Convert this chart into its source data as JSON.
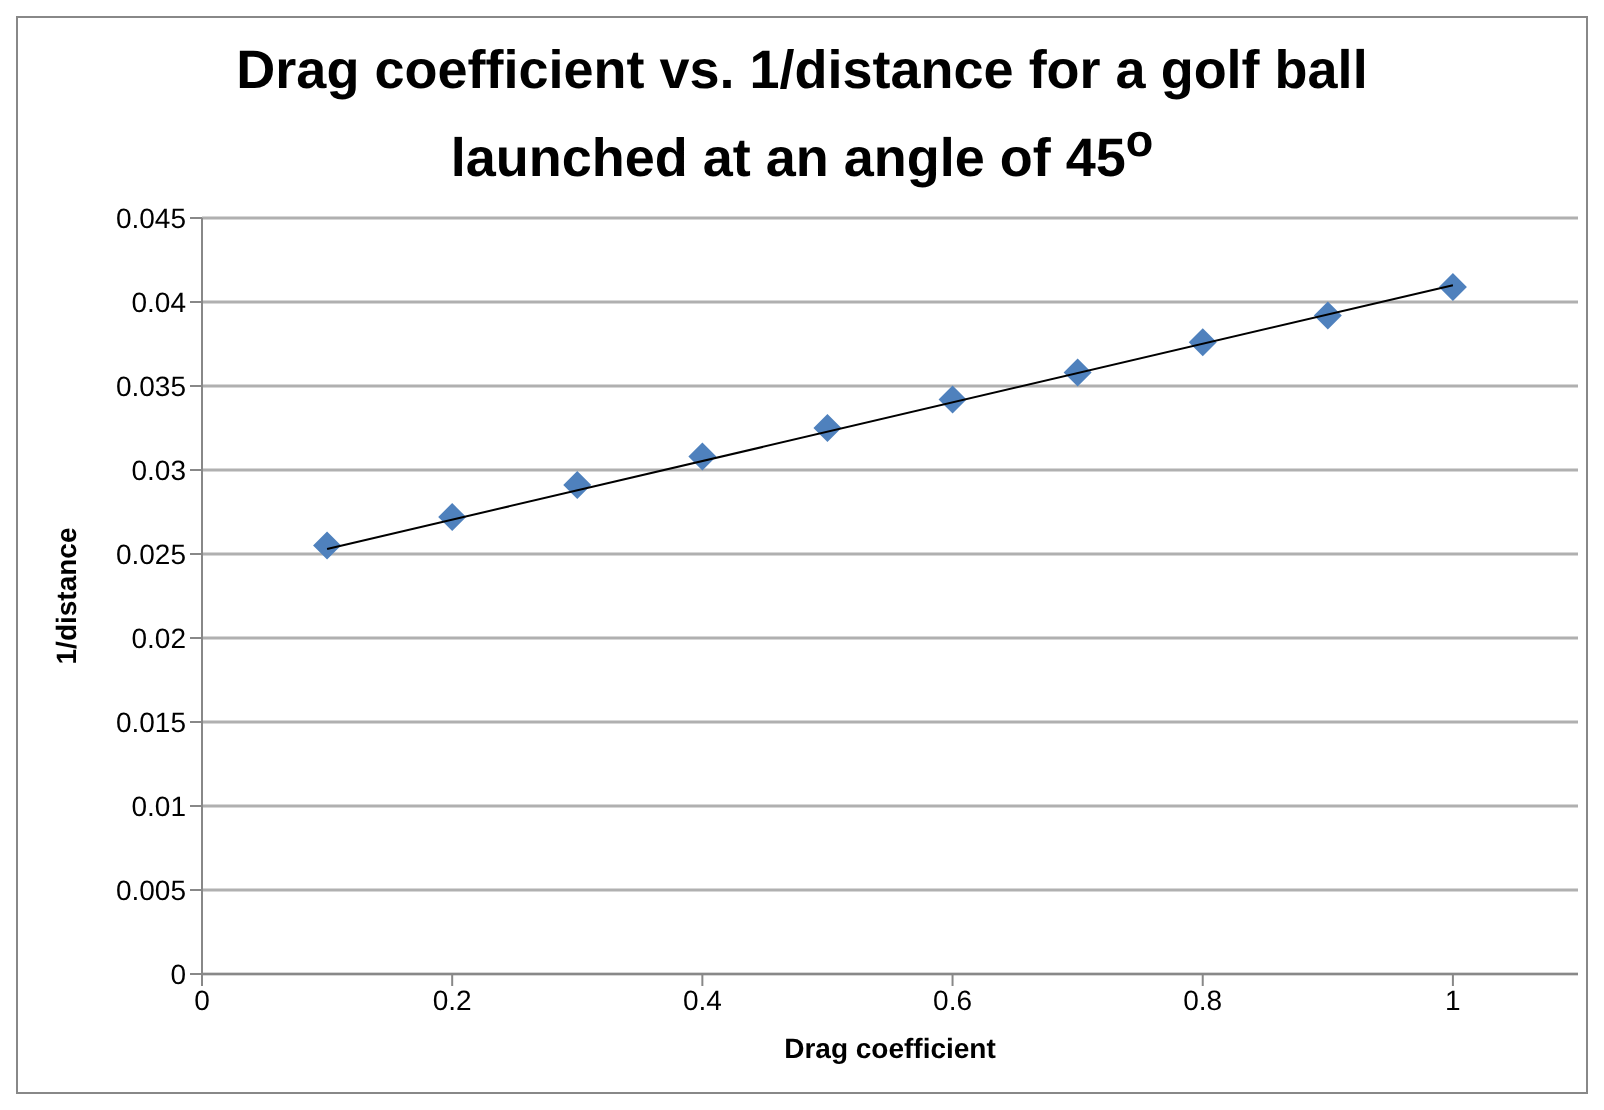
{
  "chart_data": {
    "type": "scatter",
    "title": "Drag coefficient vs. 1/distance for a golf ball launched at an angle of 45$^{o}$",
    "xlabel": "Drag coefficient",
    "ylabel": "1/distance",
    "x": [
      0.1,
      0.2,
      0.3,
      0.4,
      0.5,
      0.6,
      0.7,
      0.8,
      0.9,
      1.0
    ],
    "series": [
      {
        "type": "scatter",
        "color": "#4f81bd",
        "marker": "diamond",
        "values": [
          0.0255,
          0.0272,
          0.0291,
          0.0308,
          0.0325,
          0.0342,
          0.0358,
          0.0376,
          0.0392,
          0.0409
        ]
      },
      {
        "type": "line",
        "color": "#000000",
        "marker": "none",
        "x": [
          0.1,
          1.0
        ],
        "values": [
          0.0253,
          0.041
        ]
      }
    ],
    "xlim": [
      0,
      1.1
    ],
    "xticks": [
      0,
      0.2,
      0.4,
      0.6,
      0.8,
      1
    ],
    "ylim": [
      0,
      0.045
    ],
    "yticks": [
      0,
      0.005,
      0.01,
      0.015,
      0.02,
      0.025,
      0.03,
      0.035,
      0.04,
      0.045
    ],
    "grid": "y",
    "legend": false
  }
}
